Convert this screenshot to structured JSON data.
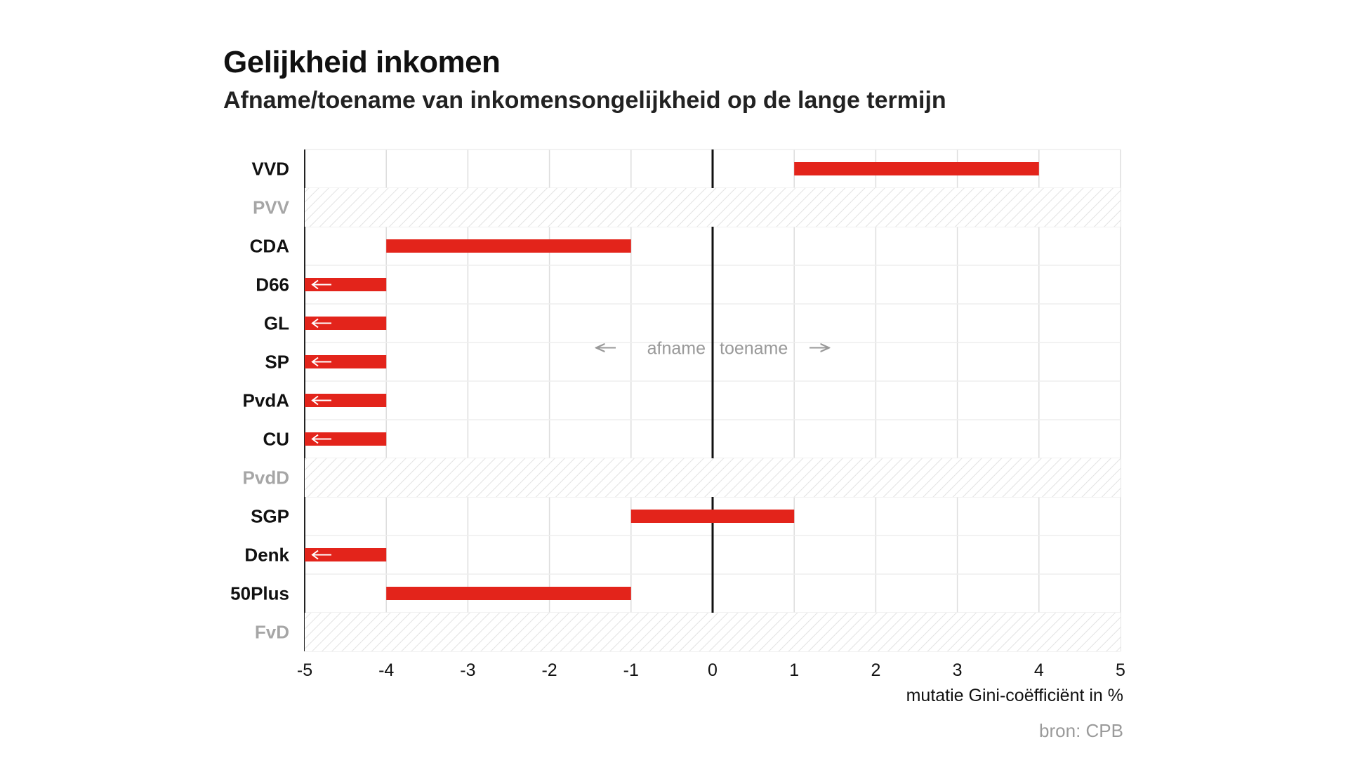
{
  "header": {
    "title": "Gelijkheid inkomen",
    "subtitle": "Afname/toename van inkomensongelijkheid op de lange termijn"
  },
  "source": "bron: CPB",
  "colors": {
    "bar": "#e3241b",
    "grid": "#dddddd",
    "hatch": "#e2e2e2",
    "label_active": "#111111",
    "label_inactive": "#a6a6a6",
    "annotation": "#999999"
  },
  "chart_data": {
    "type": "bar",
    "orientation": "horizontal",
    "title": "Gelijkheid inkomen",
    "subtitle": "Afname/toename van inkomensongelijkheid op de lange termijn",
    "xlabel": "mutatie Gini-coëfficiënt in %",
    "ylabel": "",
    "xlim": [
      -5,
      5
    ],
    "xticks": [
      "-5",
      "-4",
      "-3",
      "-2",
      "-1",
      "0",
      "1",
      "2",
      "3",
      "4",
      "5"
    ],
    "grid": true,
    "annotations": {
      "left": "afname",
      "right": "toename"
    },
    "categories": [
      "VVD",
      "PVV",
      "CDA",
      "D66",
      "GL",
      "SP",
      "PvdA",
      "CU",
      "PvdD",
      "SGP",
      "Denk",
      "50Plus",
      "FvD"
    ],
    "ranges": [
      {
        "party": "VVD",
        "from": 1,
        "to": 4,
        "extends_below_axis": false,
        "no_data": false
      },
      {
        "party": "PVV",
        "from": null,
        "to": null,
        "extends_below_axis": false,
        "no_data": true
      },
      {
        "party": "CDA",
        "from": -4,
        "to": -1,
        "extends_below_axis": false,
        "no_data": false
      },
      {
        "party": "D66",
        "from": -5,
        "to": -4,
        "extends_below_axis": true,
        "no_data": false
      },
      {
        "party": "GL",
        "from": -5,
        "to": -4,
        "extends_below_axis": true,
        "no_data": false
      },
      {
        "party": "SP",
        "from": -5,
        "to": -4,
        "extends_below_axis": true,
        "no_data": false
      },
      {
        "party": "PvdA",
        "from": -5,
        "to": -4,
        "extends_below_axis": true,
        "no_data": false
      },
      {
        "party": "CU",
        "from": -5,
        "to": -4,
        "extends_below_axis": true,
        "no_data": false
      },
      {
        "party": "PvdD",
        "from": null,
        "to": null,
        "extends_below_axis": false,
        "no_data": true
      },
      {
        "party": "SGP",
        "from": -1,
        "to": 1,
        "extends_below_axis": false,
        "no_data": false
      },
      {
        "party": "Denk",
        "from": -5,
        "to": -4,
        "extends_below_axis": true,
        "no_data": false
      },
      {
        "party": "50Plus",
        "from": -4,
        "to": -1,
        "extends_below_axis": false,
        "no_data": false
      },
      {
        "party": "FvD",
        "from": null,
        "to": null,
        "extends_below_axis": false,
        "no_data": true
      }
    ]
  }
}
